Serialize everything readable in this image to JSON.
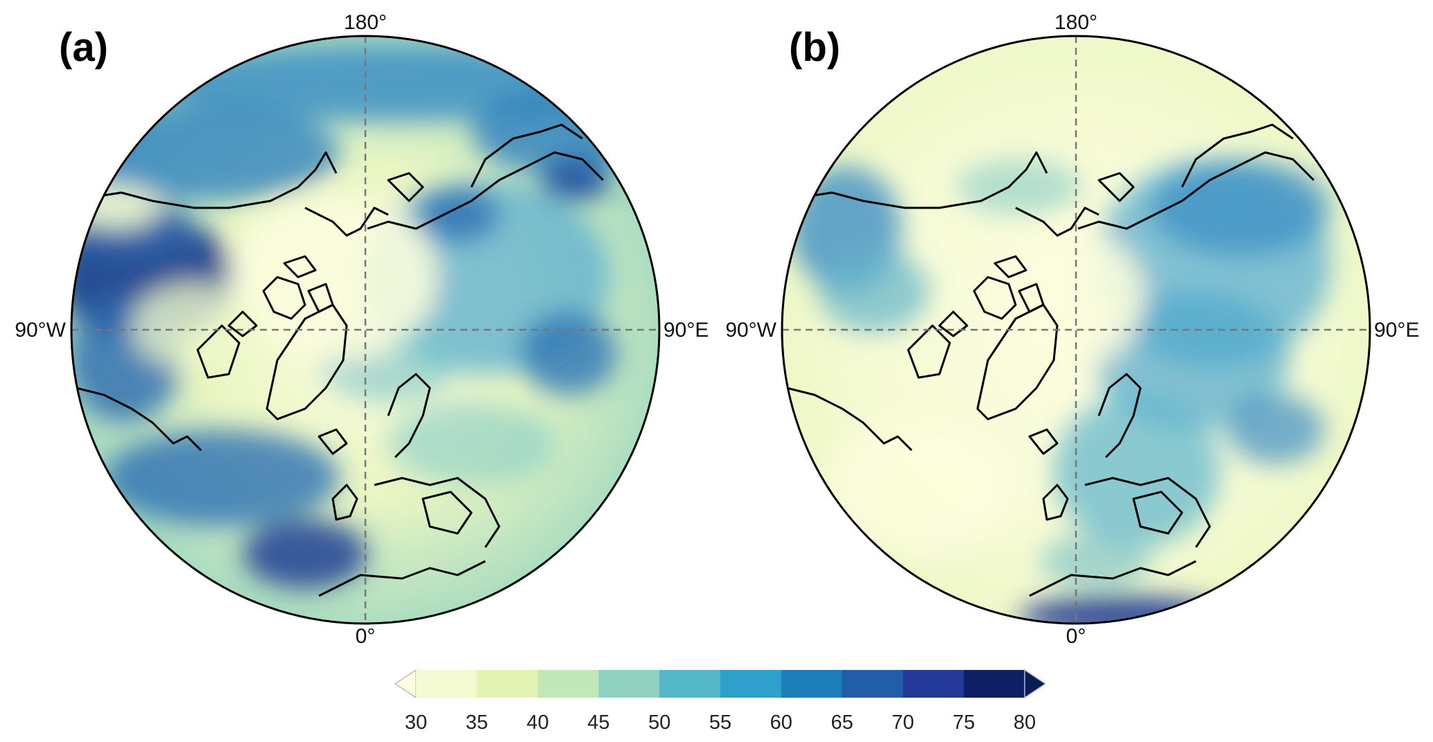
{
  "panels": [
    {
      "id": "a",
      "label": "(a)",
      "lon_labels": {
        "top": "180°",
        "left": "90°W",
        "right": "90°E",
        "bottom": "0°"
      }
    },
    {
      "id": "b",
      "label": "(b)",
      "lon_labels": {
        "top": "180°",
        "left": "90°W",
        "right": "90°E",
        "bottom": "0°"
      }
    }
  ],
  "colorbar": {
    "ticks": [
      "30",
      "35",
      "40",
      "45",
      "50",
      "55",
      "60",
      "65",
      "70",
      "75",
      "80"
    ],
    "colors": [
      "#f4fbd2",
      "#e2f4b4",
      "#c3e8b8",
      "#8ed2bf",
      "#55b8c8",
      "#2fa0cb",
      "#1d7eba",
      "#225ea8",
      "#243a98",
      "#0f1f66"
    ],
    "under_color": "#fdfee0",
    "over_color": "#081d58",
    "extend": "both"
  },
  "style": {
    "ocean_light": "#fcfde0",
    "grid_color": "#777777"
  }
}
